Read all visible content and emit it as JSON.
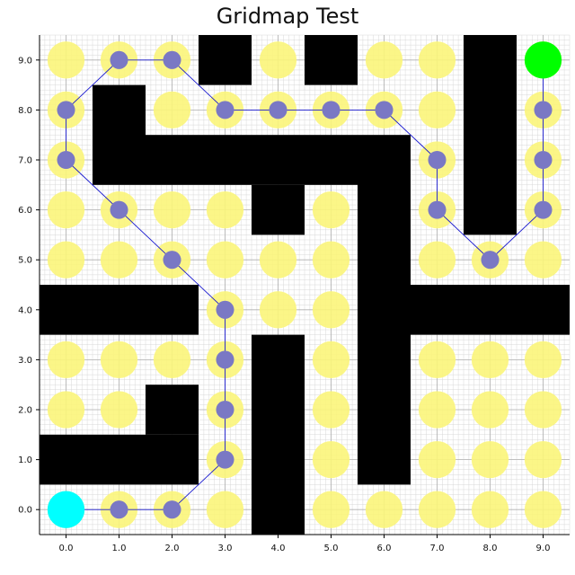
{
  "chart_data": {
    "type": "scatter",
    "title": "Gridmap Test",
    "xlabel": "",
    "ylabel": "",
    "xlim": [
      -0.5,
      9.5
    ],
    "ylim": [
      -0.5,
      9.5
    ],
    "grid": true,
    "minor_grid": true,
    "x_ticks": [
      "0.0",
      "1.0",
      "2.0",
      "3.0",
      "4.0",
      "5.0",
      "6.0",
      "7.0",
      "8.0",
      "9.0"
    ],
    "y_ticks": [
      "0.0",
      "1.0",
      "2.0",
      "3.0",
      "4.0",
      "5.0",
      "6.0",
      "7.0",
      "8.0",
      "9.0"
    ],
    "obstacles": [
      {
        "x": [
          -0.5,
          2.5
        ],
        "y": [
          0.5,
          1.5
        ]
      },
      {
        "x": [
          1.5,
          2.5
        ],
        "y": [
          1.5,
          2.5
        ]
      },
      {
        "x": [
          -0.5,
          2.5
        ],
        "y": [
          3.5,
          4.5
        ]
      },
      {
        "x": [
          3.5,
          4.5
        ],
        "y": [
          -0.5,
          3.5
        ]
      },
      {
        "x": [
          5.5,
          6.5
        ],
        "y": [
          0.5,
          7.5
        ]
      },
      {
        "x": [
          6.5,
          9.5
        ],
        "y": [
          3.5,
          4.5
        ]
      },
      {
        "x": [
          0.5,
          1.5
        ],
        "y": [
          6.5,
          8.5
        ]
      },
      {
        "x": [
          1.5,
          5.5
        ],
        "y": [
          6.5,
          7.5
        ]
      },
      {
        "x": [
          3.5,
          4.5
        ],
        "y": [
          5.5,
          6.5
        ]
      },
      {
        "x": [
          2.5,
          3.5
        ],
        "y": [
          8.5,
          9.5
        ]
      },
      {
        "x": [
          4.5,
          5.5
        ],
        "y": [
          8.5,
          9.5
        ]
      },
      {
        "x": [
          7.5,
          8.5
        ],
        "y": [
          5.5,
          9.5
        ]
      }
    ],
    "free_cells": [
      [
        0,
        0
      ],
      [
        1,
        0
      ],
      [
        2,
        0
      ],
      [
        3,
        0
      ],
      [
        5,
        0
      ],
      [
        6,
        0
      ],
      [
        7,
        0
      ],
      [
        8,
        0
      ],
      [
        9,
        0
      ],
      [
        3,
        1
      ],
      [
        5,
        1
      ],
      [
        7,
        1
      ],
      [
        8,
        1
      ],
      [
        9,
        1
      ],
      [
        0,
        2
      ],
      [
        1,
        2
      ],
      [
        3,
        2
      ],
      [
        5,
        2
      ],
      [
        7,
        2
      ],
      [
        8,
        2
      ],
      [
        9,
        2
      ],
      [
        0,
        3
      ],
      [
        1,
        3
      ],
      [
        2,
        3
      ],
      [
        3,
        3
      ],
      [
        5,
        3
      ],
      [
        7,
        3
      ],
      [
        8,
        3
      ],
      [
        9,
        3
      ],
      [
        3,
        4
      ],
      [
        4,
        4
      ],
      [
        5,
        4
      ],
      [
        0,
        5
      ],
      [
        1,
        5
      ],
      [
        2,
        5
      ],
      [
        3,
        5
      ],
      [
        4,
        5
      ],
      [
        5,
        5
      ],
      [
        7,
        5
      ],
      [
        8,
        5
      ],
      [
        9,
        5
      ],
      [
        0,
        6
      ],
      [
        1,
        6
      ],
      [
        2,
        6
      ],
      [
        3,
        6
      ],
      [
        5,
        6
      ],
      [
        7,
        6
      ],
      [
        9,
        6
      ],
      [
        0,
        7
      ],
      [
        7,
        7
      ],
      [
        9,
        7
      ],
      [
        0,
        8
      ],
      [
        2,
        8
      ],
      [
        3,
        8
      ],
      [
        4,
        8
      ],
      [
        5,
        8
      ],
      [
        6,
        8
      ],
      [
        7,
        8
      ],
      [
        9,
        8
      ],
      [
        0,
        9
      ],
      [
        1,
        9
      ],
      [
        2,
        9
      ],
      [
        4,
        9
      ],
      [
        6,
        9
      ],
      [
        7,
        9
      ],
      [
        9,
        9
      ]
    ],
    "path": [
      [
        0,
        0
      ],
      [
        1,
        0
      ],
      [
        2,
        0
      ],
      [
        3,
        1
      ],
      [
        3,
        2
      ],
      [
        3,
        3
      ],
      [
        3,
        4
      ],
      [
        2,
        5
      ],
      [
        1,
        6
      ],
      [
        0,
        7
      ],
      [
        0,
        8
      ],
      [
        1,
        9
      ],
      [
        2,
        9
      ],
      [
        3,
        8
      ],
      [
        4,
        8
      ],
      [
        5,
        8
      ],
      [
        6,
        8
      ],
      [
        7,
        7
      ],
      [
        7,
        6
      ],
      [
        8,
        5
      ],
      [
        9,
        6
      ],
      [
        9,
        7
      ],
      [
        9,
        8
      ],
      [
        9,
        9
      ]
    ],
    "start": [
      0,
      0
    ],
    "goal": [
      9,
      9
    ],
    "colors": {
      "free_cell": "#fbf57a",
      "path_marker": "#7a78c4",
      "path_line": "#1a1ad0",
      "obstacle": "#000000",
      "start": "#00ffff",
      "goal": "#00ff00",
      "major_grid": "#b0b0b0",
      "minor_grid": "#d8d8d8"
    }
  }
}
